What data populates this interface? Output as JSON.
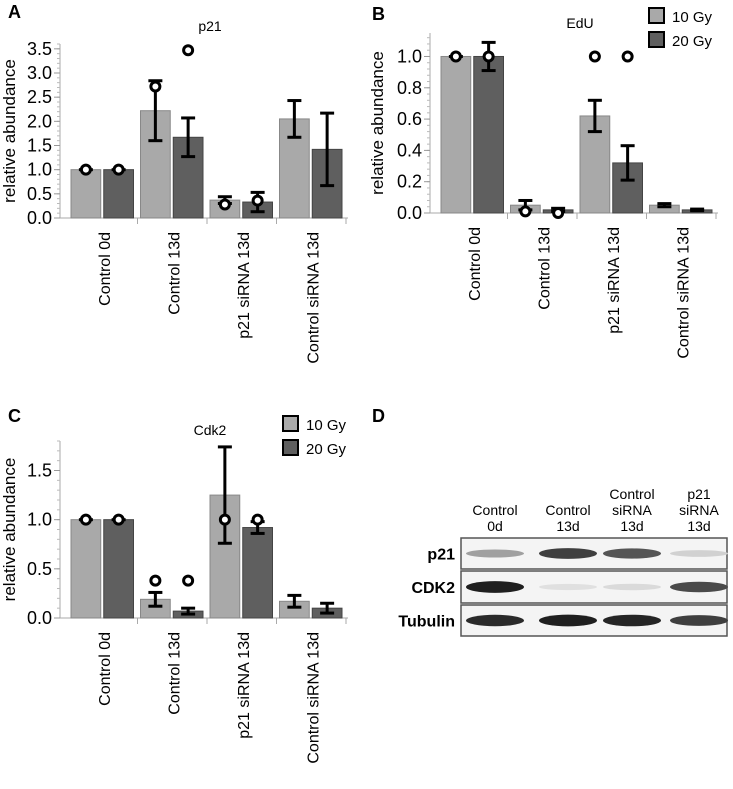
{
  "panels": {
    "A": "A",
    "B": "B",
    "C": "C",
    "D": "D"
  },
  "colors": {
    "gy10": "#a9a9a9",
    "gy20": "#5f5f5f",
    "error": "#000000"
  },
  "chart_data": [
    {
      "type": "bar",
      "title": "p21",
      "ylabel": "relative abundance",
      "ylim": [
        0,
        3.6
      ],
      "yticks": [
        "0.0",
        "0.5",
        "1.0",
        "1.5",
        "2.0",
        "2.5",
        "3.0",
        "3.5"
      ],
      "categories": [
        "Control 0d",
        "Control 13d",
        "p21 siRNA 13d",
        "Control siRNA 13d"
      ],
      "legend": null,
      "series": [
        {
          "name": "10 Gy",
          "values": [
            1.0,
            2.22,
            0.37,
            2.05
          ],
          "errors": [
            0.0,
            0.62,
            0.07,
            0.38
          ],
          "points": [
            1.0,
            2.72,
            0.28,
            null
          ]
        },
        {
          "name": "20 Gy",
          "values": [
            1.0,
            1.67,
            0.33,
            1.42
          ],
          "errors": [
            0.0,
            0.4,
            0.2,
            0.75
          ],
          "points": [
            1.0,
            3.47,
            0.36,
            null
          ]
        }
      ]
    },
    {
      "type": "bar",
      "title": "EdU",
      "ylabel": "relative abundance",
      "ylim": [
        0,
        1.15
      ],
      "yticks": [
        "0.0",
        "0.2",
        "0.4",
        "0.6",
        "0.8",
        "1.0"
      ],
      "categories": [
        "Control 0d",
        "Control 13d",
        "p21 siRNA 13d",
        "Control siRNA 13d"
      ],
      "legend": "top-right",
      "series": [
        {
          "name": "10 Gy",
          "values": [
            1.0,
            0.05,
            0.62,
            0.05
          ],
          "errors": [
            0.0,
            0.03,
            0.1,
            0.01
          ],
          "points": [
            1.0,
            0.01,
            1.0,
            null
          ]
        },
        {
          "name": "20 Gy",
          "values": [
            1.0,
            0.02,
            0.32,
            0.02
          ],
          "errors": [
            0.09,
            0.01,
            0.11,
            0.005
          ],
          "points": [
            1.0,
            0.0,
            1.0,
            null
          ]
        }
      ]
    },
    {
      "type": "bar",
      "title": "Cdk2",
      "ylabel": "relative abundance",
      "ylim": [
        0,
        1.8
      ],
      "yticks": [
        "0.0",
        "0.5",
        "1.0",
        "1.5"
      ],
      "categories": [
        "Control 0d",
        "Control 13d",
        "p21 siRNA 13d",
        "Control siRNA 13d"
      ],
      "legend": "top-right",
      "series": [
        {
          "name": "10 Gy",
          "values": [
            1.0,
            0.19,
            1.25,
            0.17
          ],
          "errors": [
            0.0,
            0.07,
            0.49,
            0.06
          ],
          "points": [
            1.0,
            0.38,
            1.0,
            null
          ]
        },
        {
          "name": "20 Gy",
          "values": [
            1.0,
            0.07,
            0.92,
            0.1
          ],
          "errors": [
            0.0,
            0.03,
            0.06,
            0.05
          ],
          "points": [
            1.0,
            0.38,
            1.0,
            null
          ]
        }
      ]
    }
  ],
  "western_blot": {
    "lanes": [
      [
        "Control",
        "0d"
      ],
      [
        "Control",
        "13d"
      ],
      [
        "Control",
        "siRNA",
        "13d"
      ],
      [
        "p21",
        "siRNA",
        "13d"
      ]
    ],
    "rows": [
      {
        "label": "p21",
        "intensity": [
          0.35,
          0.8,
          0.7,
          0.12
        ]
      },
      {
        "label": "CDK2",
        "intensity": [
          0.95,
          0.05,
          0.08,
          0.75
        ]
      },
      {
        "label": "Tubulin",
        "intensity": [
          0.9,
          0.95,
          0.92,
          0.8
        ]
      }
    ]
  }
}
